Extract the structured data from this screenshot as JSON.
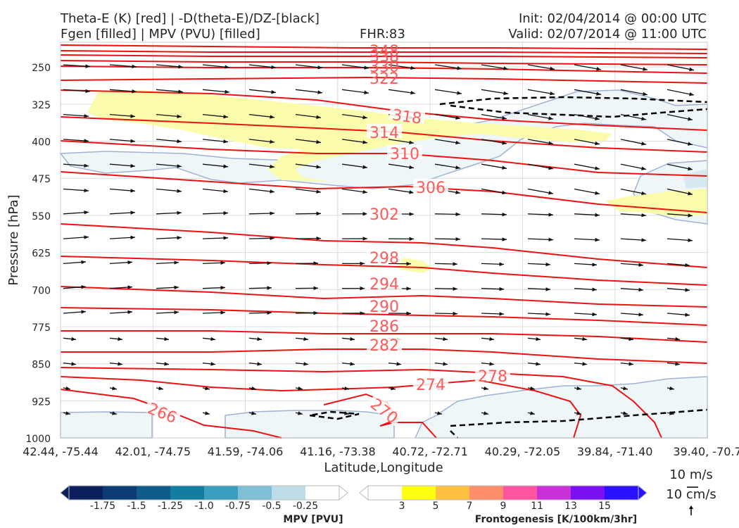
{
  "header": {
    "title_left_1": "Theta-E (K) [red] | -D(theta-E)/DZ-[black]",
    "title_left_2": "Fgen [filled] | MPV (PVU) [filled]",
    "fhr": "FHR:83",
    "init": "Init: 02/04/2014 @ 00:00 UTC",
    "valid": "Valid: 02/07/2014 @ 11:00 UTC"
  },
  "chart_data": {
    "type": "cross-section",
    "xlabel": "Latitude,Longitude",
    "ylabel": "Pressure [hPa]",
    "x_ticks": [
      "42.44, -75.44",
      "42.01, -74.75",
      "41.59, -74.06",
      "41.16, -73.38",
      "40.72, -72.71",
      "40.29, -72.05",
      "39.84, -71.40",
      "39.40, -70.7"
    ],
    "y_ticks": [
      250,
      325,
      400,
      475,
      550,
      625,
      700,
      775,
      850,
      925,
      1000
    ],
    "ylim": [
      1000,
      200
    ],
    "theta_e_labels": [
      "266",
      "270",
      "274",
      "278",
      "282",
      "286",
      "290",
      "294",
      "298",
      "302",
      "306",
      "310",
      "314",
      "318",
      "322",
      "330",
      "338",
      "348"
    ],
    "theta_e_color": "#ee1111",
    "stability_color": "#000000"
  },
  "mpv_colorbar": {
    "title": "MPV [PVU]",
    "ticks": [
      "-1.75",
      "-1.5",
      "-1.25",
      "-1.0",
      "-0.75",
      "-0.5",
      "-0.25"
    ],
    "colors": [
      "#0b1f5c",
      "#0c3a72",
      "#0e5a8a",
      "#127d9e",
      "#3b9fc0",
      "#7fbfd6",
      "#bfdde8",
      "#ffffff"
    ]
  },
  "fgen_colorbar": {
    "title": "Frontogenesis [K/100km/3hr]",
    "ticks": [
      "3",
      "5",
      "7",
      "9",
      "11",
      "13",
      "15"
    ],
    "colors": [
      "#ffffff",
      "#ffff10",
      "#ffc040",
      "#ff8c6a",
      "#ff55a0",
      "#c830d8",
      "#7a10f0",
      "#2a10ff"
    ]
  },
  "wind_key": {
    "horizontal": "10 m/s",
    "vertical": "10 cm/s"
  }
}
